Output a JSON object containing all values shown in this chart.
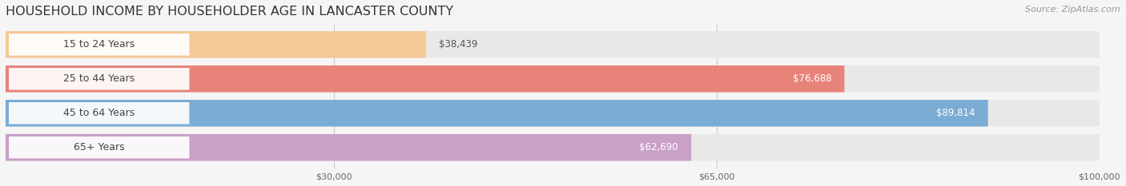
{
  "title": "HOUSEHOLD INCOME BY HOUSEHOLDER AGE IN LANCASTER COUNTY",
  "source": "Source: ZipAtlas.com",
  "categories": [
    "15 to 24 Years",
    "25 to 44 Years",
    "45 to 64 Years",
    "65+ Years"
  ],
  "values": [
    38439,
    76688,
    89814,
    62690
  ],
  "bar_colors": [
    "#f5c898",
    "#e8837a",
    "#7bacd4",
    "#c9a0c8"
  ],
  "bar_bg_color": "#e8e8e8",
  "label_texts": [
    "$38,439",
    "$76,688",
    "$89,814",
    "$62,690"
  ],
  "label_inside": [
    false,
    true,
    true,
    true
  ],
  "xmin": 0,
  "xmax": 100000,
  "xticks": [
    30000,
    65000,
    100000
  ],
  "xtick_labels": [
    "$30,000",
    "$65,000",
    "$100,000"
  ],
  "background_color": "#f5f5f5",
  "title_fontsize": 11.5,
  "source_fontsize": 8,
  "label_fontsize": 8.5,
  "category_fontsize": 9,
  "bar_height": 0.78,
  "rounding_size": 0.35
}
